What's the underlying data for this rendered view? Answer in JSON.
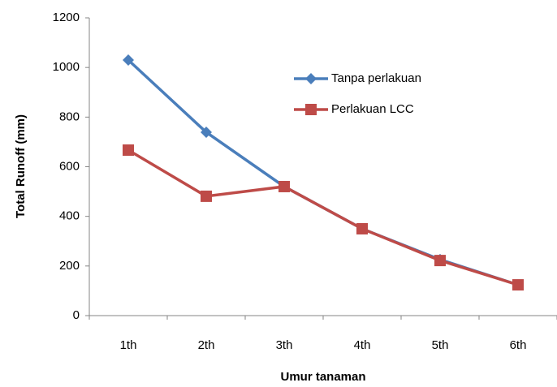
{
  "chart_data": {
    "type": "line",
    "y_label": "Total Runoff (mm)",
    "x_label": "Umur tanaman",
    "categories": [
      "1th",
      "2th",
      "3th",
      "4th",
      "5th",
      "6th"
    ],
    "series": [
      {
        "name": "Tanpa perlakuan",
        "color": "#4a7ebb",
        "marker": "diamond",
        "values": [
          1030,
          739,
          520,
          350,
          226,
          124
        ]
      },
      {
        "name": "Perlakuan LCC",
        "color": "#be4b48",
        "marker": "square",
        "values": [
          667,
          481,
          520,
          350,
          222,
          124
        ]
      }
    ],
    "ylim": [
      0,
      1200
    ],
    "yticks": [
      0,
      200,
      400,
      600,
      800,
      1000,
      1200
    ],
    "grid": false,
    "legend": "upper-right"
  }
}
